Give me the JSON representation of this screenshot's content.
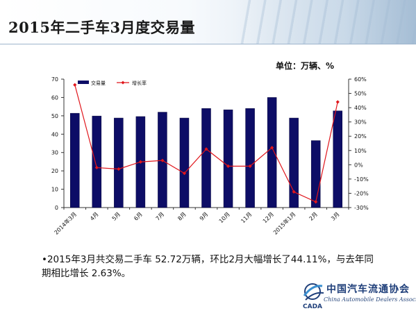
{
  "header": {
    "title": "2015年二手车3月度交易量"
  },
  "unit_label": "单位：万辆、%",
  "chart_data": {
    "type": "bar",
    "categories": [
      "2014年3月",
      "4月",
      "5月",
      "6月",
      "7月",
      "8月",
      "9月",
      "10月",
      "11月",
      "12月",
      "2015年1月",
      "2月",
      "3月"
    ],
    "series": [
      {
        "name": "交易量",
        "type": "bar",
        "axis": "left",
        "color": "#0d0d66",
        "values": [
          51.4,
          49.9,
          48.8,
          49.6,
          52.0,
          48.8,
          54.0,
          53.3,
          54.0,
          60.0,
          48.8,
          36.5,
          52.7
        ]
      },
      {
        "name": "增长率",
        "type": "line",
        "axis": "right",
        "color": "#e0151b",
        "values": [
          56,
          -2,
          -3,
          2,
          3,
          -6,
          11,
          -1,
          -1,
          12,
          -19,
          -26,
          44
        ]
      }
    ],
    "ylim_left": [
      0,
      70
    ],
    "ylim_right": [
      -30,
      60
    ],
    "yticks_left": [
      "0",
      "10",
      "20",
      "30",
      "40",
      "50",
      "60",
      "70"
    ],
    "yticks_right": [
      "-30%",
      "-20%",
      "-10%",
      "0%",
      "10%",
      "20%",
      "30%",
      "40%",
      "50%",
      "60%"
    ],
    "legend_position": "top-left",
    "grid": false
  },
  "summary": "•2015年3月共交易二手车 52.72万辆，环比2月大幅增长了44.11%，与去年同期相比增长 2.63%。",
  "logo": {
    "name": "中国汽车流通协会",
    "abbr": "CADA",
    "subtitle": "China Automobile Dealers Association"
  }
}
